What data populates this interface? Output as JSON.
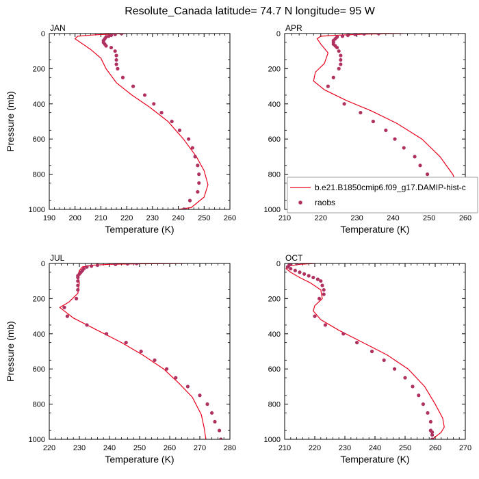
{
  "title": "Resolute_Canada  latitude= 74.7 N longitude= 95 W",
  "colors": {
    "model": "#e8001c",
    "obs": "#b03060"
  },
  "legend": {
    "model_label": "b.e21.B1850cmip6.f09_g17.DAMIP-hist-c",
    "obs_label": "raobs",
    "placement": "lower-right of APR panel"
  },
  "chart_data": [
    {
      "type": "line",
      "panel": "JAN",
      "xlabel": "Temperature (K)",
      "ylabel": "Pressure (mb)",
      "xlim": [
        190,
        260
      ],
      "ylim": [
        1000,
        0
      ],
      "xticks": [
        190,
        200,
        210,
        220,
        230,
        240,
        250,
        260
      ],
      "yticks": [
        0,
        200,
        400,
        600,
        800,
        1000
      ],
      "grid": false,
      "series": [
        {
          "name": "b.e21.B1850cmip6.f09_g17.DAMIP-hist-c",
          "kind": "line",
          "x": [
            220,
            214,
            208,
            201,
            200,
            202,
            206,
            210,
            211,
            212,
            216,
            222,
            229,
            236,
            242,
            247,
            250,
            251.5,
            250,
            245,
            240
          ],
          "y": [
            0,
            3,
            7,
            15,
            30,
            50,
            90,
            140,
            170,
            200,
            280,
            350,
            420,
            500,
            600,
            700,
            780,
            860,
            930,
            990,
            1000
          ]
        },
        {
          "name": "raobs",
          "kind": "scatter",
          "x": [
            218,
            215.5,
            214,
            213,
            212,
            211.5,
            211,
            211,
            211.5,
            212,
            214,
            215.5,
            216,
            216,
            216,
            216.5,
            218.5,
            222.5,
            227,
            230.5,
            233.5,
            237.5,
            240.5,
            244,
            245.5,
            246.5,
            247.5,
            248,
            248,
            247.5,
            244.5,
            242.5
          ],
          "y": [
            0,
            5,
            10,
            15,
            20,
            30,
            40,
            50,
            60,
            70,
            80,
            100,
            125,
            150,
            175,
            200,
            250,
            300,
            350,
            400,
            450,
            500,
            550,
            600,
            650,
            700,
            750,
            800,
            850,
            900,
            950,
            1000
          ]
        }
      ]
    },
    {
      "type": "line",
      "panel": "APR",
      "xlabel": "Temperature (K)",
      "ylabel": "",
      "xlim": [
        210,
        260
      ],
      "ylim": [
        1000,
        0
      ],
      "xticks": [
        210,
        220,
        230,
        240,
        250,
        260
      ],
      "yticks": [
        0,
        200,
        400,
        600,
        800,
        1000
      ],
      "grid": false,
      "series": [
        {
          "name": "b.e21.B1850cmip6.f09_g17.DAMIP-hist-c",
          "kind": "line",
          "x": [
            243,
            233,
            226,
            220,
            219,
            220,
            222,
            221,
            218.5,
            218,
            221,
            227,
            234,
            241,
            248,
            253,
            256.5,
            258.5,
            258,
            255,
            251
          ],
          "y": [
            0,
            3,
            8,
            15,
            30,
            60,
            110,
            170,
            220,
            270,
            320,
            380,
            440,
            510,
            600,
            700,
            800,
            890,
            950,
            990,
            1000
          ]
        },
        {
          "name": "raobs",
          "kind": "scatter",
          "x": [
            236,
            232,
            229.5,
            227.5,
            226,
            224.5,
            224,
            223.5,
            223.5,
            223.5,
            224,
            224.5,
            225,
            225.5,
            225.5,
            225.5,
            225,
            223.5,
            222,
            226.5,
            231,
            234.5,
            238,
            240.5,
            243,
            246,
            247.5,
            249.5,
            251.5,
            252.5,
            253,
            253.5,
            251
          ],
          "y": [
            0,
            2,
            5,
            10,
            15,
            20,
            30,
            40,
            50,
            60,
            70,
            80,
            100,
            125,
            150,
            175,
            200,
            250,
            300,
            400,
            450,
            500,
            550,
            600,
            650,
            700,
            750,
            800,
            850,
            875,
            900,
            950,
            1000
          ]
        }
      ]
    },
    {
      "type": "line",
      "panel": "JUL",
      "xlabel": "Temperature (K)",
      "ylabel": "Pressure (mb)",
      "xlim": [
        220,
        280
      ],
      "ylim": [
        1000,
        0
      ],
      "xticks": [
        220,
        230,
        240,
        250,
        260,
        270,
        280
      ],
      "yticks": [
        0,
        200,
        400,
        600,
        800,
        1000
      ],
      "grid": false,
      "series": [
        {
          "name": "b.e21.B1850cmip6.f09_g17.DAMIP-hist-c",
          "kind": "line",
          "x": [
            265,
            250,
            240,
            234,
            231,
            230,
            229.5,
            230,
            229.5,
            226.5,
            223.5,
            228,
            236,
            244,
            251,
            258,
            263,
            267.5,
            270.5,
            271.5,
            272
          ],
          "y": [
            0,
            2,
            5,
            10,
            20,
            40,
            70,
            110,
            170,
            220,
            250,
            310,
            380,
            450,
            520,
            600,
            680,
            760,
            860,
            940,
            1000
          ]
        },
        {
          "name": "raobs",
          "kind": "scatter",
          "x": [
            249,
            246,
            242,
            236,
            234,
            232.5,
            231.5,
            231,
            230.5,
            230,
            229.5,
            229.5,
            229.5,
            229.5,
            229.5,
            229,
            225,
            226,
            232.5,
            239,
            245.5,
            250.5,
            255,
            259,
            262,
            266,
            270,
            272.5,
            274,
            275,
            276.5,
            277
          ],
          "y": [
            0,
            2,
            5,
            10,
            15,
            20,
            30,
            40,
            50,
            60,
            70,
            80,
            100,
            125,
            150,
            200,
            250,
            300,
            350,
            400,
            450,
            500,
            550,
            600,
            650,
            700,
            750,
            800,
            850,
            900,
            950,
            1000
          ]
        }
      ]
    },
    {
      "type": "line",
      "panel": "OCT",
      "xlabel": "Temperature (K)",
      "ylabel": "",
      "xlim": [
        210,
        270
      ],
      "ylim": [
        1000,
        0
      ],
      "xticks": [
        210,
        220,
        230,
        240,
        250,
        260,
        270
      ],
      "yticks": [
        0,
        200,
        400,
        600,
        800,
        1000
      ],
      "grid": false,
      "series": [
        {
          "name": "b.e21.B1850cmip6.f09_g17.DAMIP-hist-c",
          "kind": "line",
          "x": [
            220,
            215,
            211,
            210.5,
            212,
            215,
            218.5,
            222,
            222.5,
            220,
            219.5,
            222,
            228,
            236,
            244,
            251,
            256.5,
            260,
            262.5,
            263,
            262,
            259
          ],
          "y": [
            0,
            5,
            15,
            30,
            50,
            80,
            110,
            150,
            200,
            240,
            270,
            320,
            380,
            450,
            520,
            600,
            700,
            800,
            880,
            930,
            960,
            1000
          ]
        },
        {
          "name": "raobs",
          "kind": "scatter",
          "x": [
            214,
            212,
            211.5,
            211,
            212,
            213.5,
            215,
            216.5,
            218,
            219.5,
            221,
            222,
            222.5,
            223,
            223,
            221.5,
            220,
            223.5,
            229.5,
            234,
            239,
            243,
            246.5,
            250,
            252.5,
            254.5,
            256,
            257.5,
            258.5,
            258.5,
            258.5,
            259,
            259,
            259
          ],
          "y": [
            0,
            5,
            10,
            20,
            30,
            40,
            50,
            60,
            70,
            80,
            90,
            100,
            125,
            150,
            175,
            200,
            300,
            350,
            400,
            450,
            500,
            550,
            600,
            650,
            700,
            750,
            800,
            850,
            900,
            950,
            950,
            960,
            975,
            1000
          ]
        }
      ]
    }
  ]
}
